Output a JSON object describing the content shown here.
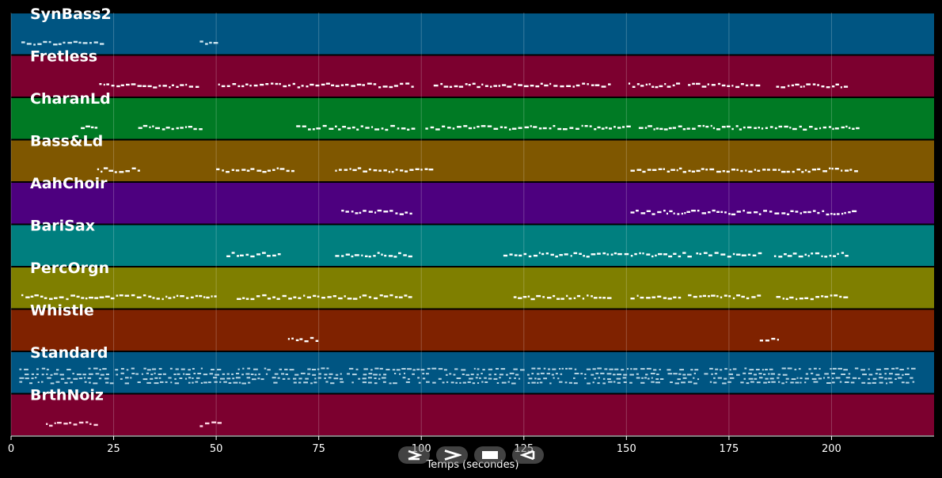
{
  "chart_data": {
    "type": "piano-roll",
    "xlabel": "Temps (secondes)",
    "xlim": [
      0,
      225
    ],
    "xticks": [
      0,
      25,
      50,
      75,
      100,
      125,
      150,
      175,
      200
    ],
    "grid": true,
    "tracks": [
      {
        "name": "SynBass2",
        "color": "#005582",
        "note": "#cde4ef",
        "segments": [
          [
            2.5,
            22
          ],
          [
            46,
            50
          ]
        ]
      },
      {
        "name": "Fretless",
        "color": "#7c002f",
        "note": "#ffffff",
        "segments": [
          [
            21.5,
            45.5
          ],
          [
            50.5,
            98
          ],
          [
            103,
            146.5
          ],
          [
            150.5,
            163
          ],
          [
            165,
            182
          ],
          [
            186.5,
            203.5
          ]
        ]
      },
      {
        "name": "CharanLd",
        "color": "#007a24",
        "note": "#ffffff",
        "segments": [
          [
            17,
            21
          ],
          [
            31,
            46
          ],
          [
            69.5,
            98
          ],
          [
            101,
            150
          ],
          [
            153,
            206
          ]
        ]
      },
      {
        "name": "Bass&Ld",
        "color": "#7f5700",
        "note": "#ffffff",
        "segments": [
          [
            21,
            31
          ],
          [
            50,
            69.5
          ],
          [
            79,
            102
          ],
          [
            151,
            206
          ]
        ]
      },
      {
        "name": "AahChoir",
        "color": "#4d007f",
        "note": "#ffffff",
        "segments": [
          [
            80.5,
            98
          ],
          [
            151,
            206
          ]
        ]
      },
      {
        "name": "BariSax",
        "color": "#007f7f",
        "note": "#ffffff",
        "segments": [
          [
            52.5,
            65
          ],
          [
            79,
            98
          ],
          [
            120,
            147
          ],
          [
            147,
            165
          ],
          [
            167,
            183
          ],
          [
            186,
            204
          ]
        ]
      },
      {
        "name": "PercOrgn",
        "color": "#7f7f00",
        "note": "#ffffff",
        "segments": [
          [
            2.5,
            50.5
          ],
          [
            55,
            98
          ],
          [
            122.5,
            146
          ],
          [
            151,
            163
          ],
          [
            165,
            182
          ],
          [
            186.5,
            203.5
          ]
        ]
      },
      {
        "name": "Whistle",
        "color": "#7f2200",
        "note": "#ffffff",
        "segments": [
          [
            67.5,
            75
          ],
          [
            182.5,
            187
          ]
        ]
      },
      {
        "name": "Standard",
        "color": "#005582",
        "note": "#cde4ef",
        "segments": [
          [
            2,
            220
          ]
        ]
      },
      {
        "name": "BrthNoiz",
        "color": "#7c002f",
        "note": "#ffd6e4",
        "segments": [
          [
            8.5,
            21
          ],
          [
            46,
            50.5
          ]
        ]
      }
    ]
  },
  "controls": {
    "icons": [
      "play-icon",
      "next-icon",
      "stop-icon",
      "previous-icon"
    ]
  }
}
